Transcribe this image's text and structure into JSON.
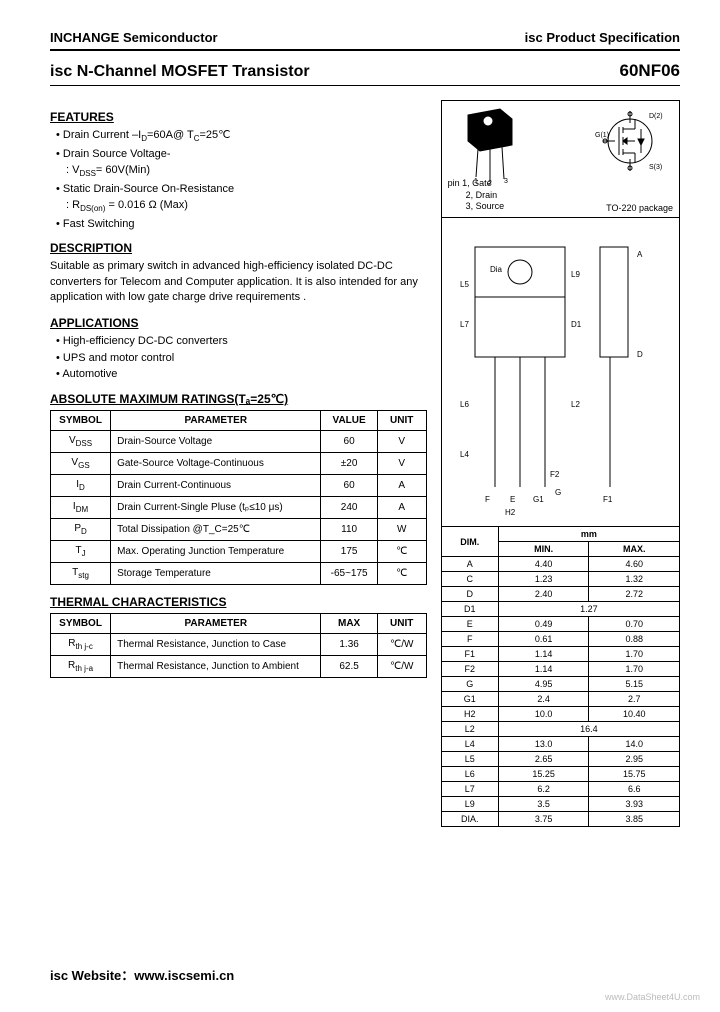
{
  "header": {
    "company": "INCHANGE Semiconductor",
    "spec": "isc Product Specification"
  },
  "title": {
    "name": "isc N-Channel MOSFET Transistor",
    "part": "60NF06"
  },
  "features": {
    "heading": "FEATURES",
    "f1": "Drain Current –I",
    "f1b": "=60A@ T",
    "f1c": "=25℃",
    "f2": "Drain Source Voltage-",
    "f2b": ": V",
    "f2c": "= 60V(Min)",
    "f3": "Static Drain-Source On-Resistance",
    "f3b": ": R",
    "f3c": " = 0.016 Ω (Max)",
    "f4": "Fast Switching"
  },
  "description": {
    "heading": "DESCRIPTION",
    "text": "Suitable as primary switch in advanced high-efficiency isolated DC-DC converters for Telecom and Computer application. It is also intended for any application with low gate charge drive requirements ."
  },
  "applications": {
    "heading": "APPLICATIONS",
    "a1": "High-efficiency DC-DC converters",
    "a2": "UPS and motor control",
    "a3": "Automotive"
  },
  "abs": {
    "heading": "ABSOLUTE MAXIMUM RATINGS(Tₐ=25℃)",
    "cols": {
      "sym": "SYMBOL",
      "param": "PARAMETER",
      "val": "VALUE",
      "unit": "UNIT"
    },
    "rows": [
      {
        "sym": "V_DSS",
        "param": "Drain-Source Voltage",
        "val": "60",
        "unit": "V"
      },
      {
        "sym": "V_GS",
        "param": "Gate-Source Voltage-Continuous",
        "val": "±20",
        "unit": "V"
      },
      {
        "sym": "I_D",
        "param": "Drain Current-Continuous",
        "val": "60",
        "unit": "A"
      },
      {
        "sym": "I_DM",
        "param": "Drain Current-Single Pluse (tₚ≤10 μs)",
        "val": "240",
        "unit": "A"
      },
      {
        "sym": "P_D",
        "param": "Total Dissipation @T_C=25℃",
        "val": "110",
        "unit": "W"
      },
      {
        "sym": "T_J",
        "param": "Max. Operating Junction Temperature",
        "val": "175",
        "unit": "℃"
      },
      {
        "sym": "T_stg",
        "param": "Storage Temperature",
        "val": "-65~175",
        "unit": "℃"
      }
    ]
  },
  "thermal": {
    "heading": "THERMAL CHARACTERISTICS",
    "cols": {
      "sym": "SYMBOL",
      "param": "PARAMETER",
      "max": "MAX",
      "unit": "UNIT"
    },
    "rows": [
      {
        "sym": "R_th j-c",
        "param": "Thermal Resistance, Junction to Case",
        "max": "1.36",
        "unit": "℃/W"
      },
      {
        "sym": "R_th j-a",
        "param": "Thermal Resistance, Junction to Ambient",
        "max": "62.5",
        "unit": "℃/W"
      }
    ]
  },
  "package": {
    "pins": "pin 1, Gate",
    "pin2": "2, Drain",
    "pin3": "3, Source",
    "name": "TO-220 package"
  },
  "dims": {
    "hdr_dim": "DIM.",
    "hdr_mm": "mm",
    "hdr_min": "MIN.",
    "hdr_max": "MAX.",
    "rows": [
      {
        "d": "A",
        "min": "4.40",
        "max": "4.60"
      },
      {
        "d": "C",
        "min": "1.23",
        "max": "1.32"
      },
      {
        "d": "D",
        "min": "2.40",
        "max": "2.72"
      },
      {
        "d": "D1",
        "min": "",
        "max": "1.27",
        "span": true
      },
      {
        "d": "E",
        "min": "0.49",
        "max": "0.70"
      },
      {
        "d": "F",
        "min": "0.61",
        "max": "0.88"
      },
      {
        "d": "F1",
        "min": "1.14",
        "max": "1.70"
      },
      {
        "d": "F2",
        "min": "1.14",
        "max": "1.70"
      },
      {
        "d": "G",
        "min": "4.95",
        "max": "5.15"
      },
      {
        "d": "G1",
        "min": "2.4",
        "max": "2.7"
      },
      {
        "d": "H2",
        "min": "10.0",
        "max": "10.40"
      },
      {
        "d": "L2",
        "min": "",
        "max": "16.4",
        "span": true
      },
      {
        "d": "L4",
        "min": "13.0",
        "max": "14.0"
      },
      {
        "d": "L5",
        "min": "2.65",
        "max": "2.95"
      },
      {
        "d": "L6",
        "min": "15.25",
        "max": "15.75"
      },
      {
        "d": "L7",
        "min": "6.2",
        "max": "6.6"
      },
      {
        "d": "L9",
        "min": "3.5",
        "max": "3.93"
      },
      {
        "d": "DIA.",
        "min": "3.75",
        "max": "3.85"
      }
    ]
  },
  "footer": {
    "site": "isc Website：www.iscsemi.cn",
    "wm": "www.DataSheet4U.com"
  }
}
